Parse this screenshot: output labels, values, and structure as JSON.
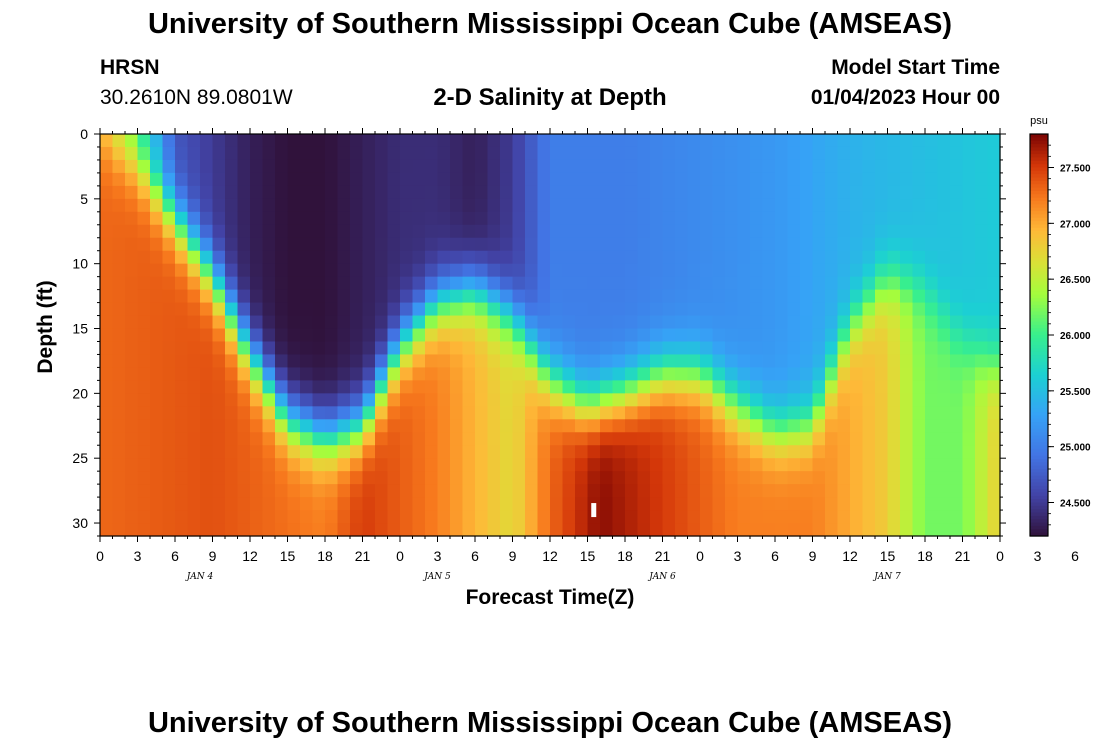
{
  "page": {
    "title": "University of Southern Mississippi Ocean Cube (AMSEAS)",
    "station": "HRSN",
    "coords": "30.2610N  89.0801W",
    "subtitle": "2-D Salinity at Depth",
    "model_start_label": "Model Start Time",
    "model_start_value": "01/04/2023 Hour 00",
    "title_repeat": "University of Southern Mississippi Ocean Cube (AMSEAS)"
  },
  "chart_data": {
    "type": "heatmap",
    "title": "2-D Salinity at Depth",
    "xlabel": "Forecast Time(Z)",
    "ylabel": "Depth (ft)",
    "x_hours_range": [
      0,
      72
    ],
    "y_depth_range": [
      0,
      31
    ],
    "x_tick_labels": [
      "0",
      "3",
      "6",
      "9",
      "12",
      "15",
      "18",
      "21",
      "0",
      "3",
      "6",
      "9",
      "12",
      "15",
      "18",
      "21",
      "0",
      "3",
      "6",
      "9",
      "12",
      "15",
      "18",
      "21",
      "0",
      "3",
      "6",
      "9",
      "12",
      "15",
      "18",
      "21",
      "0"
    ],
    "day_labels": [
      {
        "label": "JAN 4",
        "hour": 8
      },
      {
        "label": "JAN 5",
        "hour": 27
      },
      {
        "label": "JAN 6",
        "hour": 45
      },
      {
        "label": "JAN 7",
        "hour": 63
      }
    ],
    "y_tick_labels": [
      "0",
      "5",
      "10",
      "15",
      "20",
      "25",
      "30"
    ],
    "colorbar": {
      "unit": "psu",
      "range": [
        24.2,
        27.8
      ],
      "tick_labels": [
        "24.500",
        "25.000",
        "25.500",
        "26.000",
        "26.500",
        "27.000",
        "27.500"
      ]
    },
    "halocline_depth_ft": [
      {
        "hour": 0,
        "depth": 0.5
      },
      {
        "hour": 3,
        "depth": 2.5
      },
      {
        "hour": 6,
        "depth": 6.5
      },
      {
        "hour": 9,
        "depth": 11
      },
      {
        "hour": 12,
        "depth": 17
      },
      {
        "hour": 15,
        "depth": 22
      },
      {
        "hour": 18,
        "depth": 23.5
      },
      {
        "hour": 21,
        "depth": 22.5
      },
      {
        "hour": 24,
        "depth": 16.5
      },
      {
        "hour": 27,
        "depth": 13
      },
      {
        "hour": 30,
        "depth": 12
      },
      {
        "hour": 33,
        "depth": 14
      },
      {
        "hour": 36,
        "depth": 19
      },
      {
        "hour": 39,
        "depth": 21
      },
      {
        "hour": 42,
        "depth": 20
      },
      {
        "hour": 45,
        "depth": 18.5
      },
      {
        "hour": 48,
        "depth": 18.5
      },
      {
        "hour": 51,
        "depth": 21
      },
      {
        "hour": 54,
        "depth": 23
      },
      {
        "hour": 57,
        "depth": 22.5
      },
      {
        "hour": 60,
        "depth": 15
      },
      {
        "hour": 63,
        "depth": 11
      },
      {
        "hour": 66,
        "depth": 12
      },
      {
        "hour": 69,
        "depth": 16
      },
      {
        "hour": 72,
        "depth": 18
      }
    ],
    "surface_salinity_psu": [
      {
        "hour": 0,
        "value": 26.8
      },
      {
        "hour": 3,
        "value": 26.0
      },
      {
        "hour": 6,
        "value": 24.7
      },
      {
        "hour": 9,
        "value": 24.5
      },
      {
        "hour": 12,
        "value": 24.3
      },
      {
        "hour": 15,
        "value": 24.2
      },
      {
        "hour": 18,
        "value": 24.2
      },
      {
        "hour": 21,
        "value": 24.3
      },
      {
        "hour": 24,
        "value": 24.4
      },
      {
        "hour": 27,
        "value": 24.4
      },
      {
        "hour": 30,
        "value": 24.3
      },
      {
        "hour": 33,
        "value": 24.5
      },
      {
        "hour": 36,
        "value": 25.0
      },
      {
        "hour": 42,
        "value": 25.0
      },
      {
        "hour": 48,
        "value": 25.1
      },
      {
        "hour": 54,
        "value": 25.2
      },
      {
        "hour": 60,
        "value": 25.4
      },
      {
        "hour": 66,
        "value": 25.5
      },
      {
        "hour": 72,
        "value": 25.6
      }
    ],
    "bottom_salinity_psu": [
      {
        "hour": 0,
        "value": 27.3
      },
      {
        "hour": 9,
        "value": 27.4
      },
      {
        "hour": 18,
        "value": 27.2
      },
      {
        "hour": 21,
        "value": 27.5
      },
      {
        "hour": 27,
        "value": 27.2
      },
      {
        "hour": 33,
        "value": 26.7
      },
      {
        "hour": 36,
        "value": 27.3
      },
      {
        "hour": 40,
        "value": 27.75
      },
      {
        "hour": 45,
        "value": 27.5
      },
      {
        "hour": 51,
        "value": 27.2
      },
      {
        "hour": 57,
        "value": 27.2
      },
      {
        "hour": 60,
        "value": 27.0
      },
      {
        "hour": 63,
        "value": 26.8
      },
      {
        "hour": 66,
        "value": 26.2
      },
      {
        "hour": 69,
        "value": 26.2
      },
      {
        "hour": 72,
        "value": 26.8
      }
    ],
    "marker": {
      "hour": 39.5,
      "depth_ft": 29
    }
  }
}
